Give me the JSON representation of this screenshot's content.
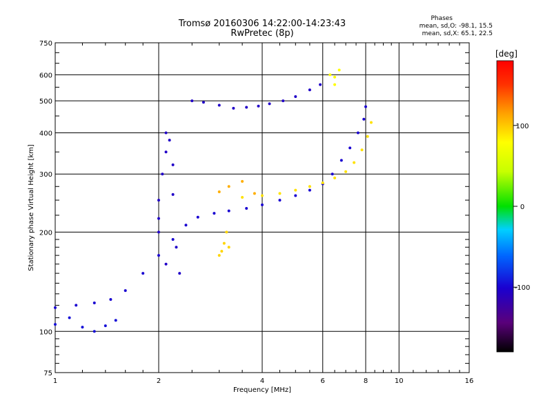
{
  "header": {
    "title_line1": "Tromsø 20160306 14:22:00-14:23:43",
    "title_line2": "RwPretec (8p)",
    "stats_title": "Phases",
    "stats_line1": "mean, sd,O: -98.1, 15.5",
    "stats_line2": "mean, sd,X:  65.1, 22.5"
  },
  "chart_data": {
    "type": "scatter",
    "title": "Tromsø 20160306 14:22:00-14:23:43",
    "subtitle": "RwPretec (8p)",
    "xlabel": "Frequency [MHz]",
    "ylabel": "Stationary phase Virtual Height [km]",
    "x_scale": "log",
    "y_scale": "log",
    "xlim": [
      1,
      16
    ],
    "ylim": [
      75,
      750
    ],
    "x_ticks": [
      1,
      2,
      4,
      6,
      8,
      10,
      16
    ],
    "y_ticks": [
      75,
      100,
      200,
      300,
      400,
      500,
      600,
      750
    ],
    "grid": true,
    "colorbar": {
      "label": "[deg]",
      "range": [
        -180,
        180
      ],
      "ticks": [
        -100,
        0,
        100
      ]
    },
    "series": [
      {
        "points": [
          [
            1.0,
            105
          ],
          [
            1.1,
            110
          ],
          [
            1.2,
            103
          ],
          [
            1.3,
            100
          ],
          [
            1.4,
            104
          ],
          [
            1.5,
            108
          ]
        ],
        "phase": -95
      },
      {
        "points": [
          [
            1.0,
            118
          ],
          [
            1.15,
            120
          ],
          [
            1.3,
            122
          ],
          [
            1.45,
            125
          ],
          [
            1.6,
            133
          ],
          [
            1.8,
            150
          ],
          [
            2.0,
            170
          ],
          [
            2.2,
            190
          ],
          [
            2.4,
            210
          ],
          [
            2.6,
            222
          ],
          [
            2.9,
            228
          ],
          [
            3.2,
            232
          ],
          [
            3.6,
            236
          ],
          [
            4.0,
            242
          ],
          [
            4.5,
            250
          ],
          [
            5.0,
            258
          ],
          [
            5.5,
            268
          ],
          [
            6.0,
            280
          ],
          [
            6.4,
            300
          ],
          [
            6.8,
            330
          ],
          [
            7.2,
            360
          ],
          [
            7.6,
            400
          ],
          [
            7.9,
            440
          ],
          [
            8.0,
            480
          ]
        ],
        "phase": -100
      },
      {
        "points": [
          [
            3.5,
            255
          ],
          [
            4.0,
            258
          ],
          [
            4.5,
            262
          ],
          [
            5.0,
            268
          ],
          [
            5.5,
            275
          ],
          [
            6.0,
            282
          ],
          [
            6.5,
            292
          ],
          [
            7.0,
            305
          ],
          [
            7.4,
            325
          ],
          [
            7.8,
            355
          ],
          [
            8.1,
            390
          ],
          [
            8.3,
            430
          ]
        ],
        "phase": 90
      },
      {
        "points": [
          [
            2.0,
            200
          ],
          [
            2.0,
            250
          ],
          [
            2.05,
            300
          ],
          [
            2.1,
            350
          ],
          [
            2.1,
            400
          ],
          [
            2.15,
            380
          ],
          [
            2.2,
            320
          ],
          [
            2.2,
            260
          ],
          [
            2.25,
            180
          ],
          [
            2.3,
            150
          ],
          [
            2.1,
            160
          ],
          [
            2.0,
            220
          ]
        ],
        "phase": -105
      },
      {
        "points": [
          [
            2.5,
            500
          ],
          [
            2.7,
            495
          ],
          [
            3.0,
            485
          ],
          [
            3.3,
            475
          ],
          [
            3.6,
            478
          ],
          [
            3.9,
            482
          ],
          [
            4.2,
            490
          ],
          [
            4.6,
            500
          ],
          [
            5.0,
            515
          ],
          [
            5.5,
            540
          ],
          [
            5.9,
            560
          ]
        ],
        "phase": -105
      },
      {
        "points": [
          [
            3.0,
            170
          ],
          [
            3.05,
            175
          ],
          [
            3.1,
            185
          ],
          [
            3.15,
            200
          ],
          [
            3.2,
            180
          ]
        ],
        "phase": 95
      },
      {
        "points": [
          [
            3.0,
            265
          ],
          [
            3.2,
            275
          ],
          [
            3.5,
            285
          ],
          [
            3.8,
            262
          ]
        ],
        "phase": 110
      },
      {
        "points": [
          [
            6.3,
            600
          ],
          [
            6.5,
            590
          ],
          [
            6.7,
            620
          ],
          [
            6.5,
            560
          ]
        ],
        "phase": 80
      }
    ]
  }
}
